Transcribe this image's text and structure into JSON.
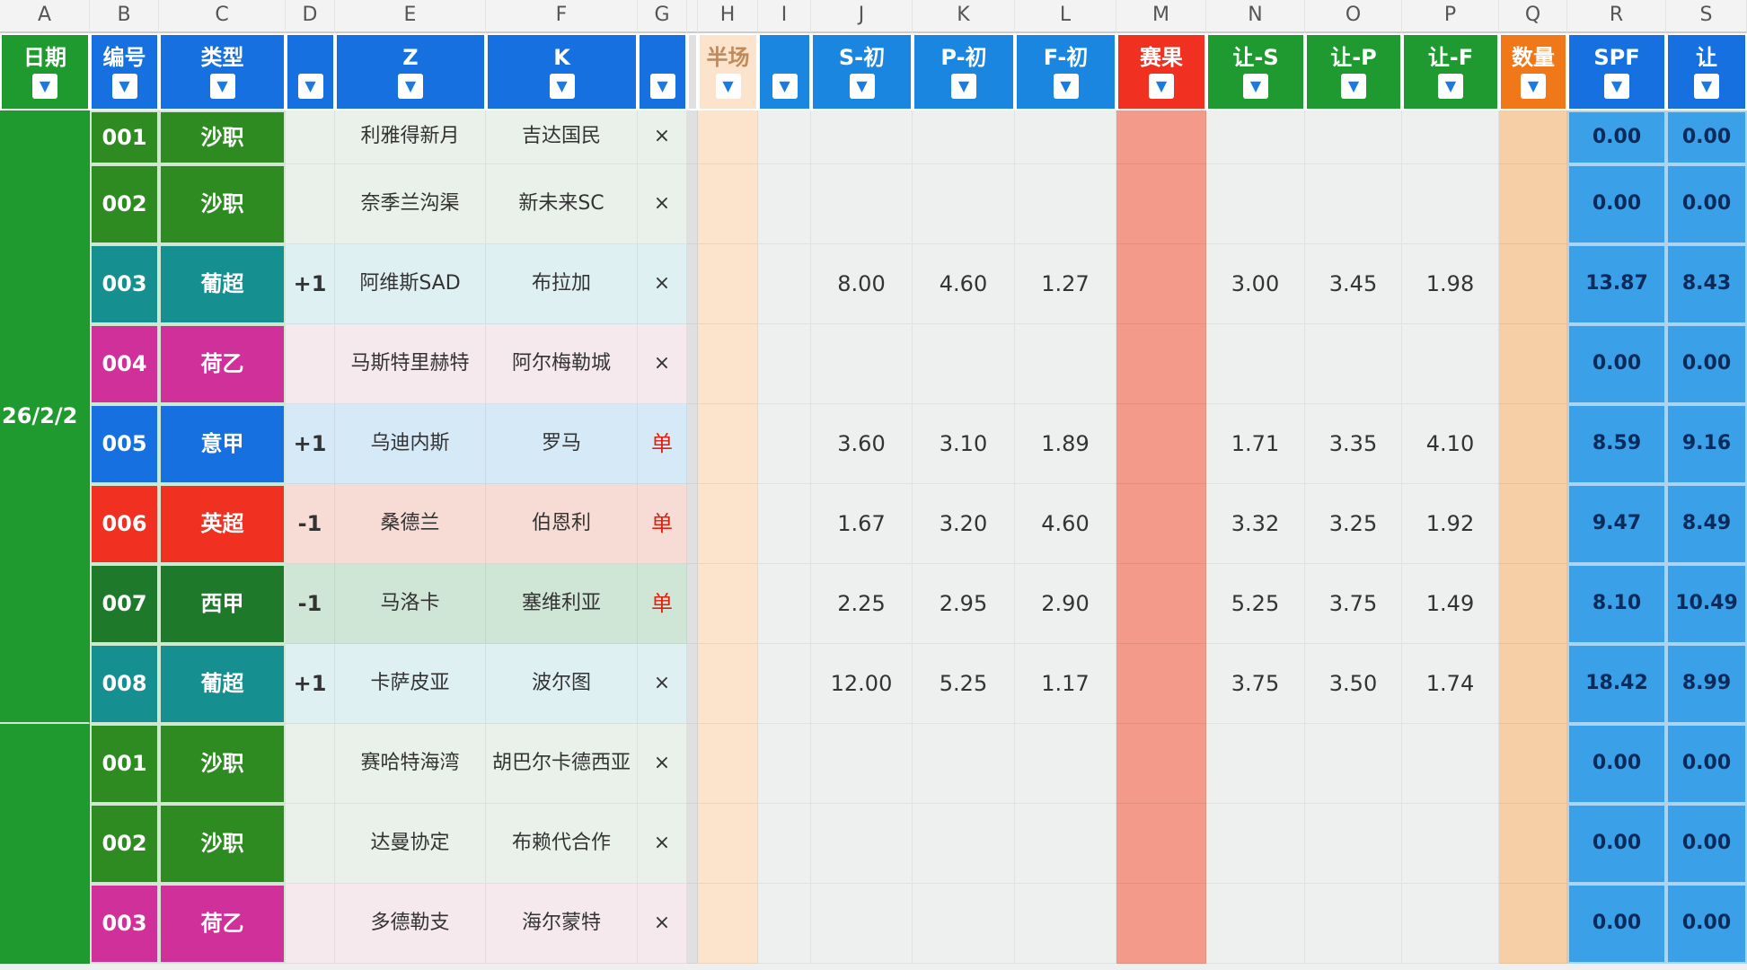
{
  "column_letters": [
    "A",
    "B",
    "C",
    "D",
    "E",
    "F",
    "G",
    "",
    "H",
    "I",
    "J",
    "K",
    "L",
    "M",
    "N",
    "O",
    "P",
    "Q",
    "R",
    "S"
  ],
  "headers": [
    {
      "label": "日期",
      "color": "#1f9a2e"
    },
    {
      "label": "编号",
      "color": "#1670e0"
    },
    {
      "label": "类型",
      "color": "#1670e0"
    },
    {
      "label": "",
      "color": "#1670e0"
    },
    {
      "label": "Z",
      "color": "#1670e0"
    },
    {
      "label": "K",
      "color": "#1670e0"
    },
    {
      "label": "",
      "color": "#1670e0"
    },
    {
      "label": "",
      "color": "#e0e0e0"
    },
    {
      "label": "半场",
      "color": "#fbe3cc"
    },
    {
      "label": "",
      "color": "#1a86e0"
    },
    {
      "label": "S-初",
      "color": "#1a86e0"
    },
    {
      "label": "P-初",
      "color": "#1a86e0"
    },
    {
      "label": "F-初",
      "color": "#1a86e0"
    },
    {
      "label": "赛果",
      "color": "#f03020"
    },
    {
      "label": "让-S",
      "color": "#1e9a30"
    },
    {
      "label": "让-P",
      "color": "#1e9a30"
    },
    {
      "label": "让-F",
      "color": "#1e9a30"
    },
    {
      "label": "数量",
      "color": "#f07818"
    },
    {
      "label": "SPF",
      "color": "#1670e0"
    },
    {
      "label": "让",
      "color": "#1670e0"
    }
  ],
  "date_group": "26/2/2",
  "league_colors": {
    "沙职": "#2e8b22",
    "葡超": "#168f90",
    "荷乙": "#d0309a",
    "意甲": "#1670e0",
    "英超": "#f03020",
    "西甲": "#1e7a2a"
  },
  "row_tints": {
    "沙职": "#eaf1ea",
    "葡超": "#dff0f2",
    "荷乙": "#f6e9ee",
    "意甲": "#d6e9f6",
    "英超": "#f7dcd6",
    "西甲": "#cfe6d6"
  },
  "rows": [
    {
      "id": "001",
      "league": "沙职",
      "handicap": "",
      "home": "利雅得新月",
      "away": "吉达国民",
      "mark": "×",
      "s": "",
      "p": "",
      "f": "",
      "rs": "",
      "rp": "",
      "rf": "",
      "spf": "0.00",
      "r2": "0.00"
    },
    {
      "id": "002",
      "league": "沙职",
      "handicap": "",
      "home": "奈季兰沟渠",
      "away": "新未来SC",
      "mark": "×",
      "s": "",
      "p": "",
      "f": "",
      "rs": "",
      "rp": "",
      "rf": "",
      "spf": "0.00",
      "r2": "0.00"
    },
    {
      "id": "003",
      "league": "葡超",
      "handicap": "+1",
      "home": "阿维斯SAD",
      "away": "布拉加",
      "mark": "×",
      "s": "8.00",
      "p": "4.60",
      "f": "1.27",
      "rs": "3.00",
      "rp": "3.45",
      "rf": "1.98",
      "spf": "13.87",
      "r2": "8.43"
    },
    {
      "id": "004",
      "league": "荷乙",
      "handicap": "",
      "home": "马斯特里赫特",
      "away": "阿尔梅勒城",
      "mark": "×",
      "s": "",
      "p": "",
      "f": "",
      "rs": "",
      "rp": "",
      "rf": "",
      "spf": "0.00",
      "r2": "0.00"
    },
    {
      "id": "005",
      "league": "意甲",
      "handicap": "+1",
      "home": "乌迪内斯",
      "away": "罗马",
      "mark": "单",
      "s": "3.60",
      "p": "3.10",
      "f": "1.89",
      "rs": "1.71",
      "rp": "3.35",
      "rf": "4.10",
      "spf": "8.59",
      "r2": "9.16"
    },
    {
      "id": "006",
      "league": "英超",
      "handicap": "-1",
      "home": "桑德兰",
      "away": "伯恩利",
      "mark": "单",
      "s": "1.67",
      "p": "3.20",
      "f": "4.60",
      "rs": "3.32",
      "rp": "3.25",
      "rf": "1.92",
      "spf": "9.47",
      "r2": "8.49"
    },
    {
      "id": "007",
      "league": "西甲",
      "handicap": "-1",
      "home": "马洛卡",
      "away": "塞维利亚",
      "mark": "单",
      "s": "2.25",
      "p": "2.95",
      "f": "2.90",
      "rs": "5.25",
      "rp": "3.75",
      "rf": "1.49",
      "spf": "8.10",
      "r2": "10.49"
    },
    {
      "id": "008",
      "league": "葡超",
      "handicap": "+1",
      "home": "卡萨皮亚",
      "away": "波尔图",
      "mark": "×",
      "s": "12.00",
      "p": "5.25",
      "f": "1.17",
      "rs": "3.75",
      "rp": "3.50",
      "rf": "1.74",
      "spf": "18.42",
      "r2": "8.99"
    },
    {
      "id": "001",
      "league": "沙职",
      "handicap": "",
      "home": "赛哈特海湾",
      "away": "胡巴尔卡德西亚",
      "mark": "×",
      "s": "",
      "p": "",
      "f": "",
      "rs": "",
      "rp": "",
      "rf": "",
      "spf": "0.00",
      "r2": "0.00"
    },
    {
      "id": "002",
      "league": "沙职",
      "handicap": "",
      "home": "达曼协定",
      "away": "布赖代合作",
      "mark": "×",
      "s": "",
      "p": "",
      "f": "",
      "rs": "",
      "rp": "",
      "rf": "",
      "spf": "0.00",
      "r2": "0.00"
    },
    {
      "id": "003",
      "league": "荷乙",
      "handicap": "",
      "home": "多德勒支",
      "away": "海尔蒙特",
      "mark": "×",
      "s": "",
      "p": "",
      "f": "",
      "rs": "",
      "rp": "",
      "rf": "",
      "spf": "0.00",
      "r2": "0.00"
    }
  ]
}
